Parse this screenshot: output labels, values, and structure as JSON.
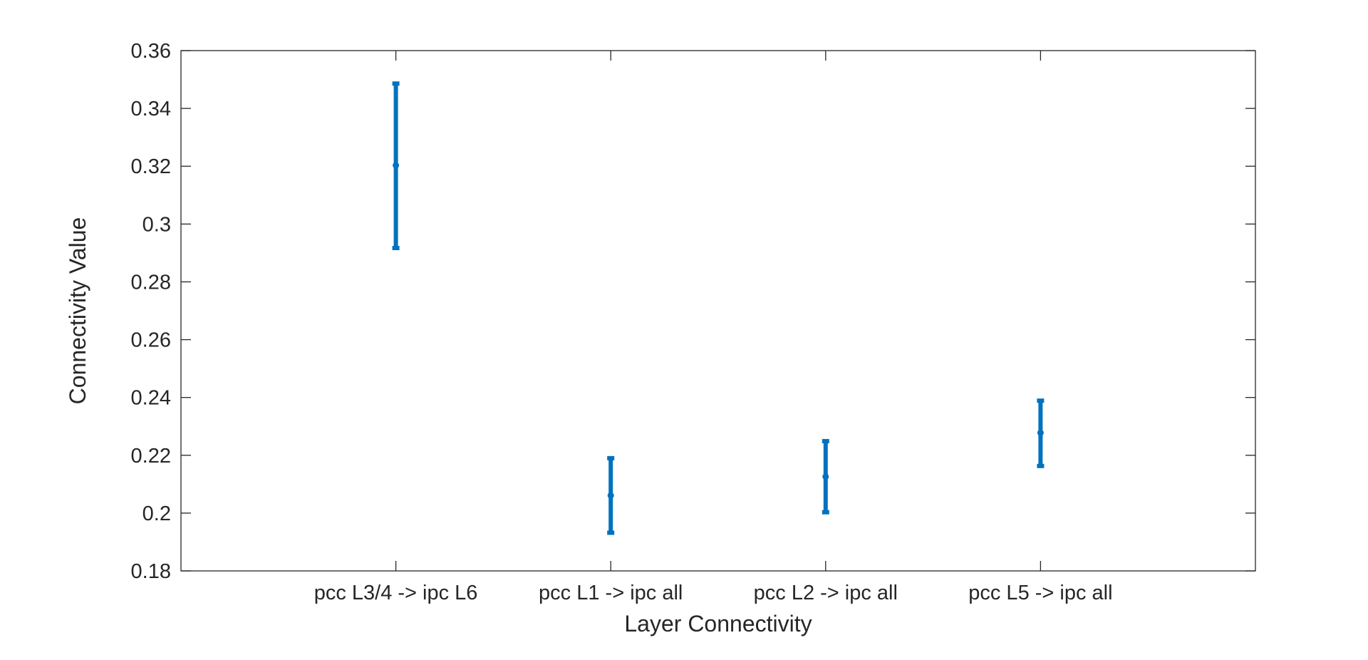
{
  "chart_data": {
    "type": "errorbar",
    "title": "",
    "xlabel": "Layer Connectivity",
    "ylabel": "Connectivity Value",
    "categories": [
      "pcc L3/4 -> ipc L6",
      "pcc L1 -> ipc all",
      "pcc L2 -> ipc all",
      "pcc L5 -> ipc all"
    ],
    "xlim": [
      0,
      5
    ],
    "ylim": [
      0.18,
      0.36
    ],
    "yticks": [
      0.18,
      0.2,
      0.22,
      0.24,
      0.26,
      0.28,
      0.3,
      0.32,
      0.34,
      0.36
    ],
    "ytick_labels": [
      "0.18",
      "0.2",
      "0.22",
      "0.24",
      "0.26",
      "0.28",
      "0.3",
      "0.32",
      "0.34",
      "0.36"
    ],
    "series": [
      {
        "values": [
          0.3203,
          0.2061,
          0.2126,
          0.2278
        ],
        "lower": [
          0.2917,
          0.1932,
          0.2003,
          0.2163
        ],
        "upper": [
          0.3486,
          0.219,
          0.2249,
          0.2389
        ]
      }
    ],
    "grid": false,
    "color": "#0072BD"
  }
}
